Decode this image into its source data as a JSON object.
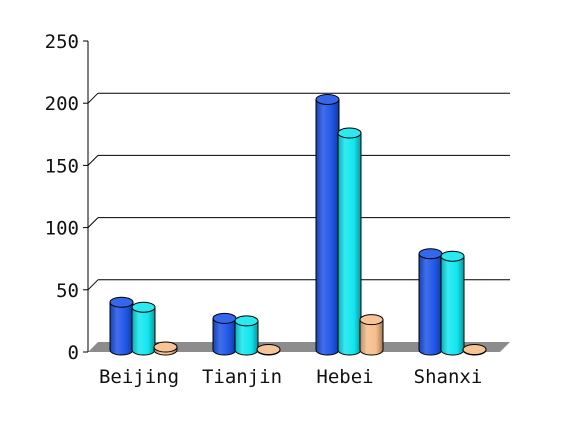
{
  "chart_data": {
    "type": "bar",
    "style": "3d-cylinder",
    "title": "",
    "xlabel": "",
    "ylabel": "",
    "categories": [
      "Beijing",
      "Tianjin",
      "Hebei",
      "Shanxi"
    ],
    "series": [
      {
        "values": [
          40,
          27,
          203,
          79
        ],
        "color": "#1f56e8"
      },
      {
        "values": [
          36,
          25,
          176,
          77
        ],
        "color": "#12e6ef"
      },
      {
        "values": [
          4,
          2,
          26,
          2
        ],
        "color": "#f5bd8a"
      }
    ],
    "ylim": [
      0,
      250
    ],
    "yticks": [
      "0",
      "50",
      "100",
      "150",
      "200",
      "250"
    ],
    "grid": true,
    "legend": "none",
    "colors": {
      "floor": "#8c8c8c",
      "axis": "#000000"
    }
  }
}
